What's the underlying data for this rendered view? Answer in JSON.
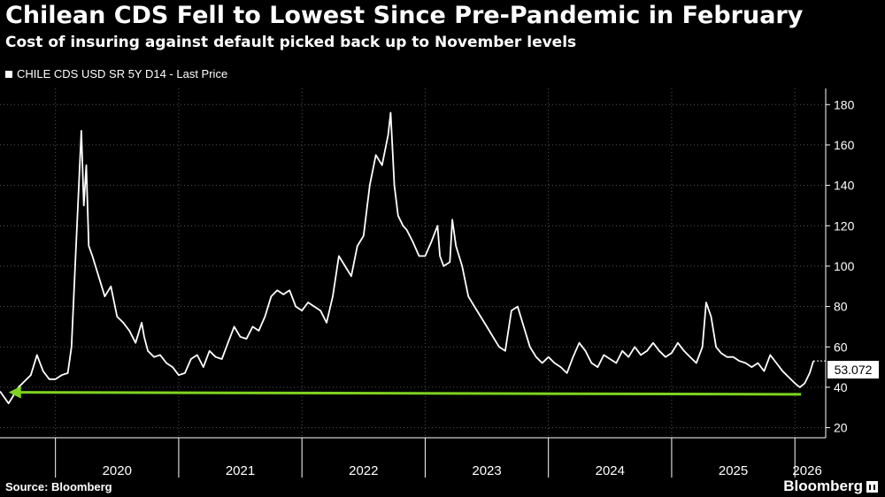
{
  "chart_data": {
    "type": "line",
    "title": "Chilean CDS Fell to Lowest Since Pre-Pandemic in February",
    "subtitle": "Cost of insuring against default picked back up to November levels",
    "series": [
      {
        "name": "CHILE CDS USD SR 5Y D14 - Last Price",
        "color": "#ffffff",
        "points": [
          [
            2019.55,
            38
          ],
          [
            2019.62,
            32
          ],
          [
            2019.7,
            40
          ],
          [
            2019.8,
            46
          ],
          [
            2019.85,
            56
          ],
          [
            2019.9,
            48
          ],
          [
            2019.95,
            44
          ],
          [
            2020.0,
            44
          ],
          [
            2020.05,
            46
          ],
          [
            2020.1,
            47
          ],
          [
            2020.13,
            60
          ],
          [
            2020.16,
            100
          ],
          [
            2020.19,
            140
          ],
          [
            2020.21,
            167
          ],
          [
            2020.23,
            130
          ],
          [
            2020.25,
            150
          ],
          [
            2020.27,
            110
          ],
          [
            2020.3,
            105
          ],
          [
            2020.35,
            95
          ],
          [
            2020.4,
            85
          ],
          [
            2020.45,
            90
          ],
          [
            2020.5,
            75
          ],
          [
            2020.55,
            72
          ],
          [
            2020.6,
            68
          ],
          [
            2020.65,
            62
          ],
          [
            2020.7,
            72
          ],
          [
            2020.72,
            65
          ],
          [
            2020.75,
            58
          ],
          [
            2020.8,
            55
          ],
          [
            2020.85,
            56
          ],
          [
            2020.9,
            52
          ],
          [
            2020.95,
            50
          ],
          [
            2021.0,
            46
          ],
          [
            2021.05,
            47
          ],
          [
            2021.1,
            54
          ],
          [
            2021.15,
            56
          ],
          [
            2021.2,
            50
          ],
          [
            2021.25,
            58
          ],
          [
            2021.3,
            55
          ],
          [
            2021.35,
            54
          ],
          [
            2021.4,
            62
          ],
          [
            2021.45,
            70
          ],
          [
            2021.5,
            65
          ],
          [
            2021.55,
            64
          ],
          [
            2021.6,
            70
          ],
          [
            2021.65,
            68
          ],
          [
            2021.7,
            75
          ],
          [
            2021.75,
            85
          ],
          [
            2021.8,
            88
          ],
          [
            2021.85,
            86
          ],
          [
            2021.9,
            88
          ],
          [
            2021.95,
            80
          ],
          [
            2022.0,
            78
          ],
          [
            2022.05,
            82
          ],
          [
            2022.1,
            80
          ],
          [
            2022.15,
            78
          ],
          [
            2022.2,
            72
          ],
          [
            2022.25,
            85
          ],
          [
            2022.3,
            105
          ],
          [
            2022.35,
            100
          ],
          [
            2022.4,
            95
          ],
          [
            2022.45,
            110
          ],
          [
            2022.5,
            115
          ],
          [
            2022.55,
            140
          ],
          [
            2022.6,
            155
          ],
          [
            2022.65,
            150
          ],
          [
            2022.7,
            165
          ],
          [
            2022.72,
            176
          ],
          [
            2022.75,
            140
          ],
          [
            2022.78,
            125
          ],
          [
            2022.82,
            120
          ],
          [
            2022.85,
            118
          ],
          [
            2022.9,
            112
          ],
          [
            2022.95,
            105
          ],
          [
            2023.0,
            105
          ],
          [
            2023.05,
            112
          ],
          [
            2023.1,
            120
          ],
          [
            2023.12,
            105
          ],
          [
            2023.15,
            100
          ],
          [
            2023.2,
            102
          ],
          [
            2023.22,
            123
          ],
          [
            2023.25,
            110
          ],
          [
            2023.3,
            100
          ],
          [
            2023.35,
            85
          ],
          [
            2023.4,
            80
          ],
          [
            2023.45,
            75
          ],
          [
            2023.5,
            70
          ],
          [
            2023.55,
            65
          ],
          [
            2023.6,
            60
          ],
          [
            2023.65,
            58
          ],
          [
            2023.7,
            78
          ],
          [
            2023.75,
            80
          ],
          [
            2023.8,
            70
          ],
          [
            2023.85,
            60
          ],
          [
            2023.9,
            55
          ],
          [
            2023.95,
            52
          ],
          [
            2024.0,
            55
          ],
          [
            2024.05,
            52
          ],
          [
            2024.1,
            50
          ],
          [
            2024.15,
            47
          ],
          [
            2024.2,
            55
          ],
          [
            2024.25,
            62
          ],
          [
            2024.3,
            58
          ],
          [
            2024.35,
            52
          ],
          [
            2024.4,
            50
          ],
          [
            2024.45,
            56
          ],
          [
            2024.5,
            54
          ],
          [
            2024.55,
            52
          ],
          [
            2024.6,
            58
          ],
          [
            2024.65,
            55
          ],
          [
            2024.7,
            60
          ],
          [
            2024.75,
            56
          ],
          [
            2024.8,
            58
          ],
          [
            2024.85,
            62
          ],
          [
            2024.9,
            58
          ],
          [
            2024.95,
            55
          ],
          [
            2025.0,
            57
          ],
          [
            2025.05,
            62
          ],
          [
            2025.1,
            58
          ],
          [
            2025.15,
            55
          ],
          [
            2025.2,
            52
          ],
          [
            2025.25,
            60
          ],
          [
            2025.28,
            82
          ],
          [
            2025.32,
            75
          ],
          [
            2025.36,
            60
          ],
          [
            2025.4,
            57
          ],
          [
            2025.45,
            55
          ],
          [
            2025.5,
            55
          ],
          [
            2025.55,
            53
          ],
          [
            2025.6,
            52
          ],
          [
            2025.65,
            50
          ],
          [
            2025.7,
            52
          ],
          [
            2025.75,
            48
          ],
          [
            2025.8,
            56
          ],
          [
            2025.85,
            52
          ],
          [
            2025.9,
            48
          ],
          [
            2025.95,
            45
          ],
          [
            2026.0,
            42
          ],
          [
            2026.04,
            40
          ],
          [
            2026.08,
            42
          ],
          [
            2026.12,
            47
          ],
          [
            2026.15,
            53.072
          ]
        ]
      }
    ],
    "last_value_label": "53.072",
    "annotation": {
      "type": "arrow",
      "color": "#7ed321",
      "from": [
        2026.05,
        36.5
      ],
      "to": [
        2019.62,
        37.5
      ]
    },
    "x_ticks": [
      "2020",
      "2021",
      "2022",
      "2023",
      "2024",
      "2025",
      "2026"
    ],
    "x_tick_values": [
      2020.5,
      2021.5,
      2022.5,
      2023.5,
      2024.5,
      2025.5,
      2026.1
    ],
    "x_dividers": [
      2020,
      2021,
      2022,
      2023,
      2024,
      2025,
      2026
    ],
    "xlim": [
      2019.55,
      2026.25
    ],
    "y_ticks": [
      20,
      40,
      60,
      80,
      100,
      120,
      140,
      160,
      180
    ],
    "ylim": [
      15,
      188
    ],
    "grid": true,
    "xlabel": "",
    "ylabel": ""
  },
  "legend_label": "CHILE CDS USD SR 5Y D14 - Last Price",
  "source": "Source: Bloomberg",
  "brand": "Bloomberg",
  "colors": {
    "background": "#000000",
    "line": "#ffffff",
    "arrow": "#7ed321",
    "grid": "#555555"
  }
}
